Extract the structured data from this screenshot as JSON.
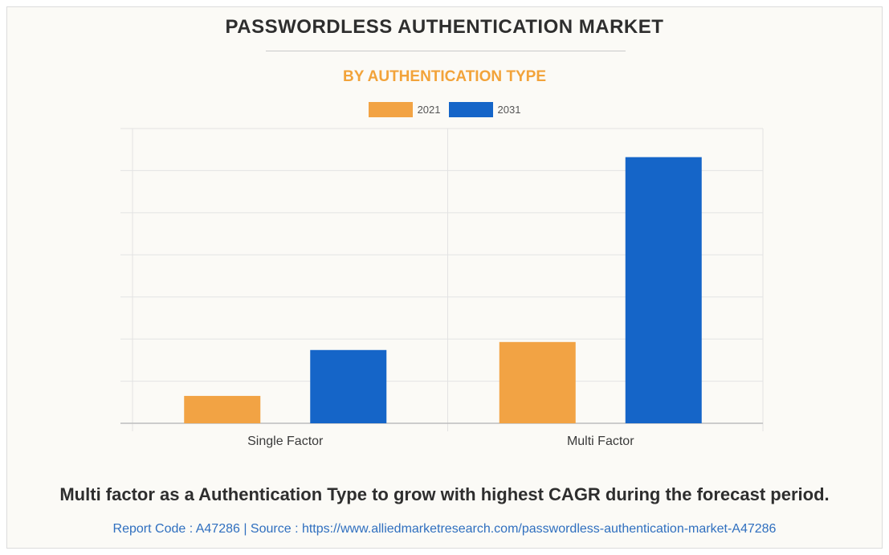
{
  "header": {
    "title": "PASSWORDLESS AUTHENTICATION MARKET",
    "subtitle": "BY AUTHENTICATION TYPE"
  },
  "colors": {
    "series_2021": "#f2a344",
    "series_2031": "#1565c8",
    "gridline": "#e3e3e3",
    "axis": "#bdbdbd",
    "subtitle": "#f2a33a",
    "link": "#2f6fbf"
  },
  "chart_data": {
    "type": "bar",
    "categories": [
      "Single Factor",
      "Multi Factor"
    ],
    "series": [
      {
        "name": "2021",
        "values": [
          0.65,
          1.93
        ]
      },
      {
        "name": "2031",
        "values": [
          1.74,
          6.32
        ]
      }
    ],
    "ylim": [
      0,
      7
    ],
    "grid": true,
    "y_tick_labels_shown": false,
    "legend_position": "top-center"
  },
  "footer": {
    "caption": "Multi factor as a Authentication Type to grow with highest CAGR during the forecast period.",
    "source": "Report Code : A47286  |  Source : https://www.alliedmarketresearch.com/passwordless-authentication-market-A47286"
  }
}
